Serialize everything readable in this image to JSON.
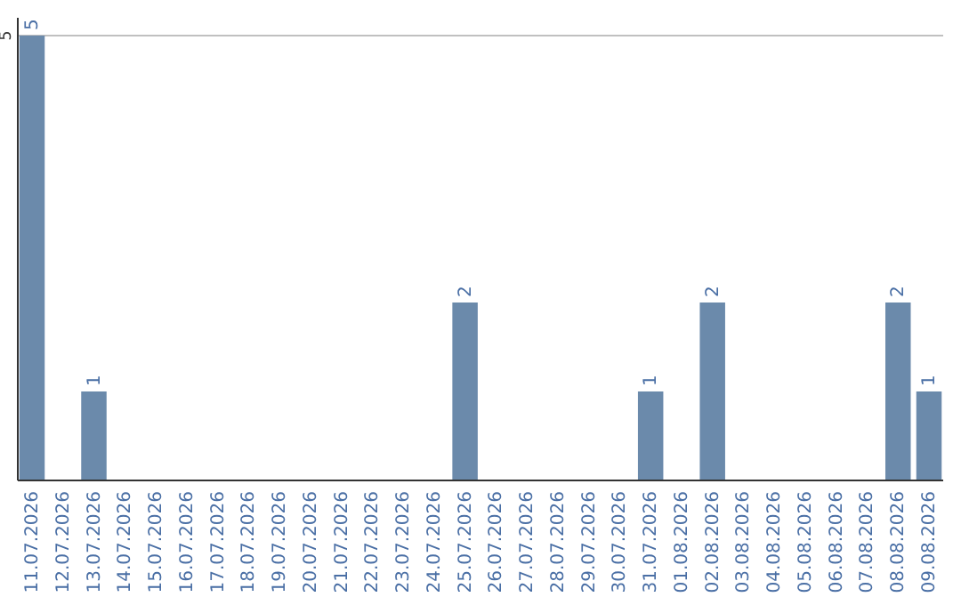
{
  "chart_data": {
    "type": "bar",
    "categories": [
      "11.07.2026",
      "12.07.2026",
      "13.07.2026",
      "14.07.2026",
      "15.07.2026",
      "16.07.2026",
      "17.07.2026",
      "18.07.2026",
      "19.07.2026",
      "20.07.2026",
      "21.07.2026",
      "22.07.2026",
      "23.07.2026",
      "24.07.2026",
      "25.07.2026",
      "26.07.2026",
      "27.07.2026",
      "28.07.2026",
      "29.07.2026",
      "30.07.2026",
      "31.07.2026",
      "01.08.2026",
      "02.08.2026",
      "03.08.2026",
      "04.08.2026",
      "05.08.2026",
      "06.08.2026",
      "07.08.2026",
      "08.08.2026",
      "09.08.2026"
    ],
    "values": [
      5,
      0,
      1,
      0,
      0,
      0,
      0,
      0,
      0,
      0,
      0,
      0,
      0,
      0,
      2,
      0,
      0,
      0,
      0,
      0,
      1,
      0,
      2,
      0,
      0,
      0,
      0,
      0,
      2,
      1
    ],
    "value_labels": [
      "5",
      null,
      "1",
      null,
      null,
      null,
      null,
      null,
      null,
      null,
      null,
      null,
      null,
      null,
      "2",
      null,
      null,
      null,
      null,
      null,
      "1",
      null,
      "2",
      null,
      null,
      null,
      null,
      null,
      "2",
      "1"
    ],
    "color": "#6b8aab",
    "ylim": [
      0,
      5.2
    ],
    "yticks": [
      5
    ],
    "grid": "y"
  }
}
